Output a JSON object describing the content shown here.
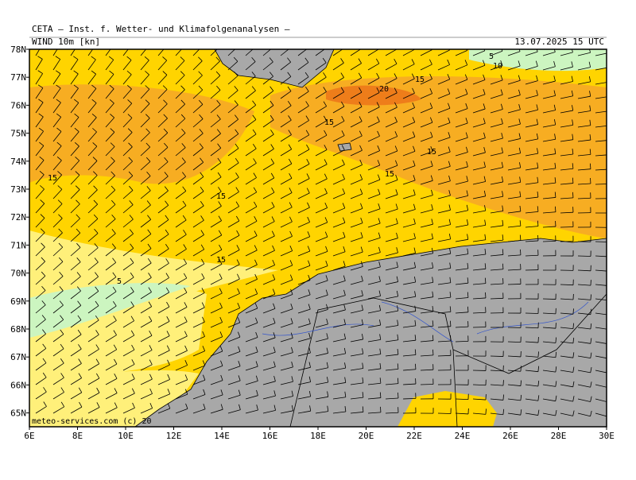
{
  "header": {
    "title": "CETA — Inst. f. Wetter- und Klimafolgenanalysen —",
    "field": "WIND 10m [kn]",
    "valid_time": "13.07.2025 15 UTC"
  },
  "map": {
    "lat_labels": [
      "78N",
      "77N",
      "76N",
      "75N",
      "74N",
      "73N",
      "72N",
      "71N",
      "70N",
      "69N",
      "68N",
      "67N",
      "66N",
      "65N"
    ],
    "lon_labels": [
      "6E",
      "8E",
      "10E",
      "12E",
      "14E",
      "16E",
      "18E",
      "20E",
      "22E",
      "24E",
      "26E",
      "28E",
      "30E"
    ],
    "contour_labels": [
      "5",
      "10",
      "15",
      "20",
      "15",
      "15",
      "15",
      "15",
      "15",
      "15",
      "10",
      "5"
    ],
    "watermark": "meteo-services.com (c) 20"
  }
}
